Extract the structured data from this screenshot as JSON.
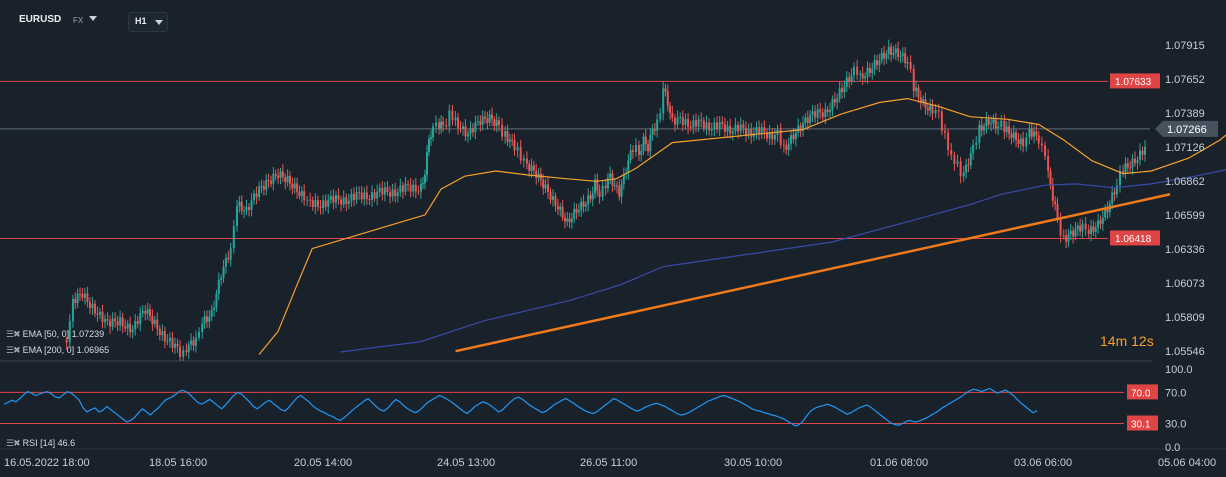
{
  "header": {
    "symbol": "EURUSD",
    "market": "FX",
    "timeframe": "H1"
  },
  "countdown": "14m 12s",
  "indicators": {
    "ema50_label": "EMA [50, 0] 1.07239",
    "ema200_label": "EMA [200, 0] 1.06965",
    "rsi_label": "RSI [14] 46.6"
  },
  "colors": {
    "background": "#19222b",
    "bull": "#26a69a",
    "bear": "#ef5350",
    "level_line": "#e04545",
    "ema50": "#f5a02c",
    "ema200": "#3949ab",
    "trendline": "#f07a1a",
    "rsi": "#2196f3"
  },
  "chart_data": [
    {
      "type": "candlestick",
      "symbol": "EURUSD",
      "timeframe": "H1",
      "ylim": [
        1.0547,
        1.08
      ],
      "y_ticks": [
        "1.07915",
        "1.07652",
        "1.07389",
        "1.07126",
        "1.06862",
        "1.06599",
        "1.06336",
        "1.06073",
        "1.05809",
        "1.05546"
      ],
      "x_ticks": [
        "16.05.2022  18:00",
        "18.05  16:00",
        "20.05  14:00",
        "24.05  13:00",
        "26.05  11:00",
        "30.05  10:00",
        "01.06  08:00",
        "03.06  06:00",
        "05.06  04:00"
      ],
      "current_price": 1.07266,
      "current_price_label": "1.07266",
      "horizontal_levels": [
        {
          "value": 1.07633,
          "label": "1.07633"
        },
        {
          "value": 1.06418,
          "label": "1.06418"
        }
      ],
      "trendline": {
        "start": [
          "23.05  17:00",
          1.05546
        ],
        "end": [
          "04.06  06:00",
          1.0676
        ]
      },
      "close_path": [
        [
          "17.05  12:00",
          1.0564
        ],
        [
          "17.05  14:00",
          1.0592
        ],
        [
          "17.05  17:00",
          1.0598
        ],
        [
          "17.05  21:00",
          1.0588
        ],
        [
          "18.05  01:00",
          1.0574
        ],
        [
          "18.05  05:00",
          1.0579
        ],
        [
          "18.05  09:00",
          1.0571
        ],
        [
          "18.05  13:00",
          1.0586
        ],
        [
          "18.05  16:00",
          1.0576
        ],
        [
          "18.05  20:00",
          1.0564
        ],
        [
          "19.05  00:00",
          1.0552
        ],
        [
          "19.05  02:00",
          1.0556
        ],
        [
          "19.05  05:00",
          1.0562
        ],
        [
          "19.05  07:00",
          1.0578
        ],
        [
          "19.05  10:00",
          1.0584
        ],
        [
          "19.05  13:00",
          1.0614
        ],
        [
          "19.05  16:00",
          1.0632
        ],
        [
          "19.05  18:00",
          1.067
        ],
        [
          "19.05  21:00",
          1.0664
        ],
        [
          "20.05  01:00",
          1.0678
        ],
        [
          "20.05  04:00",
          1.0685
        ],
        [
          "20.05  07:00",
          1.0692
        ],
        [
          "20.05  10:00",
          1.0688
        ],
        [
          "20.05  13:00",
          1.0681
        ],
        [
          "20.05  16:00",
          1.0675
        ],
        [
          "20.05  19:00",
          1.0668
        ],
        [
          "23.05  02:00",
          1.0682
        ],
        [
          "23.05  04:00",
          1.0695
        ],
        [
          "23.05  06:00",
          1.0716
        ],
        [
          "23.05  08:00",
          1.0727
        ],
        [
          "23.05  11:00",
          1.0731
        ],
        [
          "23.05  13:00",
          1.0728
        ],
        [
          "23.05  15:00",
          1.0737
        ],
        [
          "23.05  17:00",
          1.0734
        ],
        [
          "23.05  21:00",
          1.0721
        ],
        [
          "24.05  01:00",
          1.0732
        ],
        [
          "24.05  04:00",
          1.0734
        ],
        [
          "24.05  07:00",
          1.0728
        ],
        [
          "24.05  09:00",
          1.0721
        ],
        [
          "24.05  12:00",
          1.0712
        ],
        [
          "24.05  14:00",
          1.0706
        ],
        [
          "24.05  16:00",
          1.0698
        ],
        [
          "24.05  19:00",
          1.0691
        ],
        [
          "24.05  22:00",
          1.068
        ],
        [
          "25.05  02:00",
          1.0668
        ],
        [
          "25.05  05:00",
          1.0656
        ],
        [
          "25.05  08:00",
          1.0666
        ],
        [
          "25.05  11:00",
          1.0672
        ],
        [
          "25.05  14:00",
          1.0676
        ],
        [
          "25.05  17:00",
          1.0686
        ],
        [
          "25.05  20:00",
          1.0678
        ],
        [
          "26.05  00:00",
          1.0682
        ],
        [
          "26.05  03:00",
          1.0688
        ],
        [
          "26.05  06:00",
          1.068
        ],
        [
          "26.05  09:00",
          1.0676
        ],
        [
          "26.05  12:00",
          1.0688
        ],
        [
          "26.05  15:00",
          1.0702
        ],
        [
          "26.05  18:00",
          1.0712
        ],
        [
          "26.05  22:00",
          1.0708
        ],
        [
          "27.05  01:00",
          1.0718
        ],
        [
          "27.05  04:00",
          1.0712
        ],
        [
          "27.05  07:00",
          1.0725
        ],
        [
          "27.05  10:00",
          1.073
        ],
        [
          "27.05  12:00",
          1.0742
        ],
        [
          "27.05  14:00",
          1.0758
        ],
        [
          "27.05  17:00",
          1.0748
        ],
        [
          "27.05  20:00",
          1.0733
        ],
        [
          "30.05  01:00",
          1.0722
        ],
        [
          "30.05  03:00",
          1.0712
        ],
        [
          "30.05  06:00",
          1.0722
        ],
        [
          "30.05  09:00",
          1.073
        ],
        [
          "30.05  12:00",
          1.0736
        ],
        [
          "30.05  16:00",
          1.074
        ],
        [
          "30.05  19:00",
          1.0751
        ],
        [
          "30.05  22:00",
          1.0762
        ],
        [
          "31.05  01:00",
          1.0772
        ],
        [
          "31.05  03:00",
          1.0768
        ],
        [
          "31.05  06:00",
          1.0774
        ],
        [
          "31.05  09:00",
          1.0782
        ],
        [
          "31.05  12:00",
          1.0788
        ],
        [
          "31.05  15:00",
          1.0786
        ],
        [
          "31.05  18:00",
          1.0779
        ],
        [
          "31.05  20:00",
          1.076
        ],
        [
          "31.05  23:00",
          1.0748
        ],
        [
          "01.06  02:00",
          1.0742
        ],
        [
          "01.06  04:00",
          1.0738
        ],
        [
          "01.06  06:00",
          1.072
        ],
        [
          "01.06  08:00",
          1.0705
        ],
        [
          "01.06  10:00",
          1.0698
        ],
        [
          "01.06  12:00",
          1.069
        ],
        [
          "01.06  15:00",
          1.071
        ],
        [
          "01.06  17:00",
          1.0728
        ],
        [
          "01.06  20:00",
          1.0734
        ],
        [
          "01.06  23:00",
          1.073
        ],
        [
          "02.06  01:00",
          1.0728
        ],
        [
          "02.06  04:00",
          1.0722
        ],
        [
          "02.06  07:00",
          1.0716
        ],
        [
          "02.06  09:00",
          1.0724
        ],
        [
          "02.06  12:00",
          1.0717
        ],
        [
          "02.06  14:00",
          1.0708
        ],
        [
          "02.06  15:00",
          1.069
        ],
        [
          "02.06  18:00",
          1.0656
        ],
        [
          "02.06  20:00",
          1.064
        ],
        [
          "02.06  23:00",
          1.0645
        ],
        [
          "03.06  02:00",
          1.065
        ],
        [
          "03.06  04:00",
          1.0648
        ],
        [
          "03.06  07:00",
          1.0654
        ],
        [
          "03.06  10:00",
          1.0666
        ],
        [
          "03.06  13:00",
          1.0684
        ],
        [
          "03.06  15:00",
          1.0697
        ],
        [
          "03.06  18:00",
          1.0702
        ],
        [
          "03.06  22:00",
          1.0712
        ],
        [
          "04.06  00:00",
          1.0728
        ],
        [
          "04.06  02:00",
          1.074
        ],
        [
          "04.06  04:00",
          1.0746
        ],
        [
          "04.06  07:00",
          1.075
        ],
        [
          "04.06  10:00",
          1.0757
        ],
        [
          "04.06  13:00",
          1.076
        ],
        [
          "04.06  16:00",
          1.0756
        ],
        [
          "04.06  19:00",
          1.0758
        ],
        [
          "04.06  21:00",
          1.075
        ],
        [
          "04.06  23:00",
          1.0738
        ],
        [
          "05.06  00:00",
          1.0726
        ]
      ],
      "series": [
        {
          "name": "EMA [50, 0]",
          "last": 1.07239,
          "points": [
            [
              "20.05  01:00",
              1.0552
            ],
            [
              "20.05  07:00",
              1.057
            ],
            [
              "20.05  13:00",
              1.0606
            ],
            [
              "20.05  20:00",
              1.0634
            ],
            [
              "23.05  04:00",
              1.066
            ],
            [
              "23.05  12:00",
              1.068
            ],
            [
              "23.05  20:00",
              1.069
            ],
            [
              "24.05  06:00",
              1.0694
            ],
            [
              "24.05  16:00",
              1.0691
            ],
            [
              "25.05  05:00",
              1.0688
            ],
            [
              "25.05  18:00",
              1.0686
            ],
            [
              "26.05  07:00",
              1.0688
            ],
            [
              "26.05  20:00",
              1.0696
            ],
            [
              "27.05  08:00",
              1.0706
            ],
            [
              "27.05  20:00",
              1.0716
            ],
            [
              "30.05  09:00",
              1.0726
            ],
            [
              "30.05  21:00",
              1.0738
            ],
            [
              "31.05  09:00",
              1.0747
            ],
            [
              "31.05  18:00",
              1.075
            ],
            [
              "01.06  04:00",
              1.0744
            ],
            [
              "01.06  14:00",
              1.0736
            ],
            [
              "02.06  02:00",
              1.0734
            ],
            [
              "02.06  12:00",
              1.073
            ],
            [
              "02.06  20:00",
              1.0718
            ],
            [
              "03.06  05:00",
              1.0702
            ],
            [
              "03.06  15:00",
              1.0692
            ],
            [
              "04.06  00:00",
              1.0694
            ],
            [
              "04.06  12:00",
              1.0704
            ],
            [
              "04.06  22:00",
              1.0718
            ],
            [
              "05.06  01:00",
              1.0724
            ]
          ]
        },
        {
          "name": "EMA [200, 0]",
          "last": 1.06965,
          "points": [
            [
              "21.05  10:00",
              1.0554
            ],
            [
              "23.05  02:00",
              1.0562
            ],
            [
              "24.05  02:00",
              1.0578
            ],
            [
              "25.05  06:00",
              1.0594
            ],
            [
              "26.05  10:00",
              1.0606
            ],
            [
              "27.05  14:00",
              1.062
            ],
            [
              "30.05  18:00",
              1.0639
            ],
            [
              "31.05  20:00",
              1.0656
            ],
            [
              "01.06  14:00",
              1.0668
            ],
            [
              "02.06  00:00",
              1.0676
            ],
            [
              "02.06  14:00",
              1.0683
            ],
            [
              "03.06  00:00",
              1.0684
            ],
            [
              "03.06  12:00",
              1.0681
            ],
            [
              "04.06  00:00",
              1.0684
            ],
            [
              "04.06  14:00",
              1.069
            ],
            [
              "05.06  02:00",
              1.0696
            ]
          ]
        }
      ]
    },
    {
      "type": "line",
      "title": "RSI [14]",
      "last": 46.6,
      "ylim": [
        0,
        100
      ],
      "y_ticks": [
        "100.0",
        "70.0",
        "30.0",
        "0.0"
      ],
      "levels": [
        {
          "value": 70.0,
          "label": "70.0"
        },
        {
          "value": 30.1,
          "label": "30.1"
        }
      ],
      "series": [
        {
          "name": "RSI [14]",
          "values": [
            55,
            57,
            60,
            58,
            62,
            67,
            71,
            69,
            66,
            68,
            70,
            71,
            68,
            64,
            63,
            67,
            71,
            69,
            65,
            60,
            50,
            45,
            48,
            50,
            45,
            47,
            52,
            48,
            44,
            40,
            36,
            32,
            34,
            38,
            44,
            49,
            45,
            41,
            46,
            50,
            56,
            61,
            63,
            66,
            70,
            73,
            71,
            67,
            62,
            57,
            55,
            58,
            61,
            57,
            53,
            49,
            54,
            60,
            66,
            70,
            68,
            63,
            58,
            52,
            49,
            53,
            57,
            60,
            56,
            52,
            48,
            46,
            51,
            57,
            63,
            66,
            62,
            58,
            53,
            49,
            46,
            44,
            41,
            39,
            36,
            34,
            38,
            42,
            47,
            51,
            55,
            59,
            62,
            57,
            52,
            48,
            46,
            50,
            56,
            61,
            58,
            53,
            49,
            46,
            44,
            47,
            52,
            57,
            60,
            63,
            66,
            64,
            61,
            58,
            54,
            50,
            46,
            43,
            47,
            52,
            55,
            58,
            56,
            53,
            49,
            45,
            48,
            53,
            58,
            62,
            64,
            61,
            57,
            53,
            50,
            47,
            44,
            46,
            50,
            54,
            57,
            60,
            62,
            59,
            56,
            52,
            49,
            46,
            44,
            43,
            46,
            50,
            54,
            58,
            62,
            60,
            57,
            54,
            51,
            48,
            46,
            48,
            51,
            53,
            55,
            56,
            54,
            52,
            49,
            46,
            43,
            41,
            42,
            44,
            47,
            50,
            53,
            56,
            59,
            61,
            63,
            65,
            66,
            64,
            62,
            60,
            58,
            55,
            52,
            49,
            47,
            46,
            44,
            43,
            41,
            40,
            38,
            36,
            33,
            30,
            27,
            29,
            34,
            41,
            47,
            50,
            52,
            53,
            55,
            53,
            51,
            48,
            45,
            42,
            44,
            47,
            50,
            52,
            54,
            51,
            47,
            43,
            39,
            35,
            31,
            29,
            28,
            30,
            33,
            34,
            32,
            33,
            35,
            37,
            40,
            43,
            46,
            50,
            53,
            56,
            59,
            62,
            65,
            69,
            72,
            74,
            73,
            71,
            73,
            75,
            72,
            69,
            71,
            73,
            70,
            66,
            61,
            56,
            52,
            48,
            44,
            46.6
          ]
        }
      ]
    }
  ]
}
